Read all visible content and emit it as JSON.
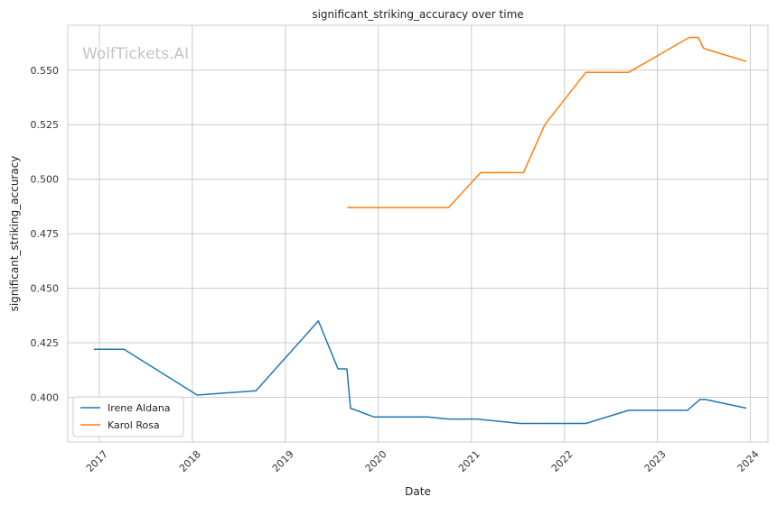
{
  "chart_data": {
    "type": "line",
    "title": "significant_striking_accuracy over time",
    "xlabel": "Date",
    "ylabel": "significant_striking_accuracy",
    "watermark": "WolfTickets.AI",
    "xlim": [
      "2016-08-30",
      "2024-03-10"
    ],
    "ylim": [
      0.3795,
      0.5706
    ],
    "x_ticks": [
      "2017-01-01",
      "2018-01-01",
      "2019-01-01",
      "2020-01-01",
      "2021-01-01",
      "2022-01-01",
      "2023-01-01",
      "2024-01-01"
    ],
    "x_tick_labels": [
      "2017",
      "2018",
      "2019",
      "2020",
      "2021",
      "2022",
      "2023",
      "2024"
    ],
    "y_ticks": [
      0.4,
      0.425,
      0.45,
      0.475,
      0.5,
      0.525,
      0.55
    ],
    "y_tick_labels": [
      "0.400",
      "0.425",
      "0.450",
      "0.475",
      "0.500",
      "0.525",
      "0.550"
    ],
    "grid": true,
    "legend_position": "lower-left",
    "series": [
      {
        "name": "Irene Aldana",
        "color": "#1f77b4",
        "points": [
          [
            "2016-12-10",
            0.422
          ],
          [
            "2017-04-08",
            0.422
          ],
          [
            "2018-01-20",
            0.401
          ],
          [
            "2018-09-08",
            0.403
          ],
          [
            "2019-05-11",
            0.435
          ],
          [
            "2019-07-27",
            0.413
          ],
          [
            "2019-08-31",
            0.413
          ],
          [
            "2019-09-14",
            0.395
          ],
          [
            "2019-12-14",
            0.391
          ],
          [
            "2020-07-11",
            0.391
          ],
          [
            "2020-10-03",
            0.39
          ],
          [
            "2021-01-23",
            0.39
          ],
          [
            "2021-07-10",
            0.388
          ],
          [
            "2022-03-26",
            0.388
          ],
          [
            "2022-09-10",
            0.394
          ],
          [
            "2023-04-29",
            0.394
          ],
          [
            "2023-06-17",
            0.399
          ],
          [
            "2023-07-08",
            0.399
          ],
          [
            "2023-12-16",
            0.395
          ]
        ]
      },
      {
        "name": "Karol Rosa",
        "color": "#ff7f0e",
        "points": [
          [
            "2019-09-01",
            0.487
          ],
          [
            "2020-10-03",
            0.487
          ],
          [
            "2021-02-06",
            0.503
          ],
          [
            "2021-07-24",
            0.503
          ],
          [
            "2021-10-16",
            0.525
          ],
          [
            "2022-03-26",
            0.549
          ],
          [
            "2022-09-10",
            0.549
          ],
          [
            "2023-05-06",
            0.565
          ],
          [
            "2023-06-10",
            0.565
          ],
          [
            "2023-07-01",
            0.56
          ],
          [
            "2023-12-16",
            0.554
          ]
        ]
      }
    ]
  }
}
